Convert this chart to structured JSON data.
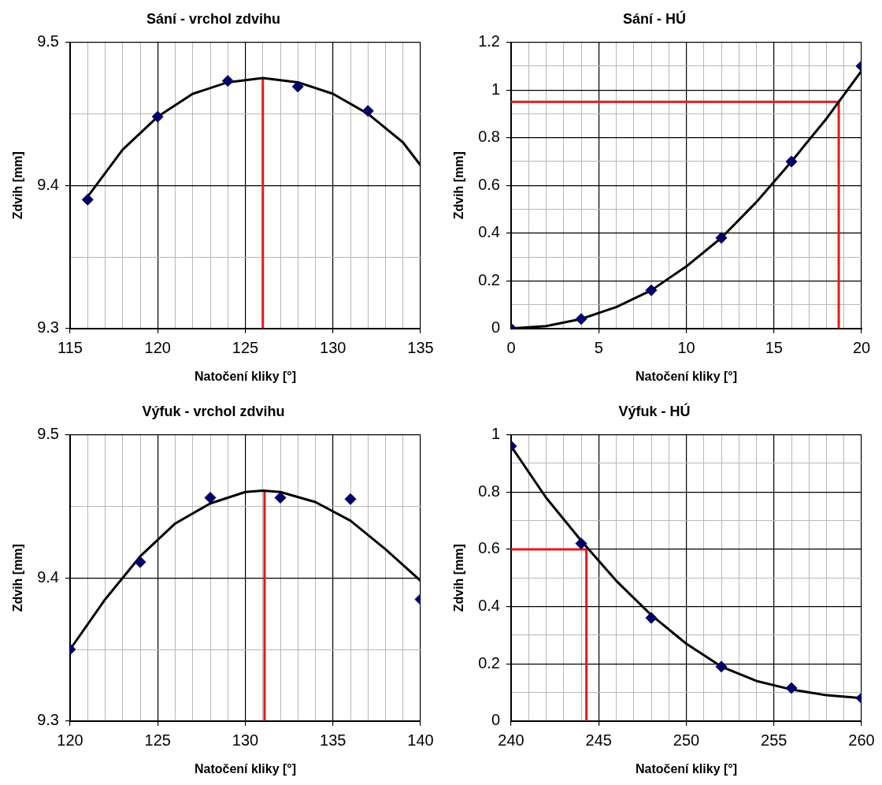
{
  "chart_data": [
    {
      "type": "scatter",
      "title": "Sání - vrchol zdvihu",
      "xlabel": "Natočení kliky [°]",
      "ylabel": "Zdvih [mm]",
      "xlim": [
        115,
        135
      ],
      "ylim": [
        9.3,
        9.5
      ],
      "xticks": [
        115,
        {
          "value": 116,
          "label": null
        },
        {
          "value": 117,
          "label": null
        },
        {
          "value": 118,
          "label": null
        },
        {
          "value": 119,
          "label": null
        },
        120,
        {
          "value": 121,
          "label": null
        },
        {
          "value": 122,
          "label": null
        },
        {
          "value": 123,
          "label": null
        },
        {
          "value": 124,
          "label": null
        },
        125,
        {
          "value": 126,
          "label": null
        },
        {
          "value": 127,
          "label": null
        },
        {
          "value": 128,
          "label": null
        },
        {
          "value": 129,
          "label": null
        },
        130,
        {
          "value": 131,
          "label": null
        },
        {
          "value": 132,
          "label": null
        },
        {
          "value": 133,
          "label": null
        },
        {
          "value": 134,
          "label": null
        },
        135
      ],
      "yticks": [
        9.3,
        {
          "value": 9.35,
          "label": null
        },
        9.4,
        {
          "value": 9.45,
          "label": null
        },
        9.5
      ],
      "grid": true,
      "series": [
        {
          "type": "line",
          "marker": "none",
          "color": "#000000",
          "x": [
            116,
            118,
            120,
            122,
            124,
            126,
            128,
            130,
            132,
            134,
            135
          ],
          "values": [
            9.392,
            9.425,
            9.448,
            9.464,
            9.472,
            9.475,
            9.472,
            9.464,
            9.45,
            9.43,
            9.414
          ]
        },
        {
          "type": "line",
          "marker": "none",
          "color": "#e01b1b",
          "x": [
            126,
            126
          ],
          "values": [
            9.3,
            9.475
          ]
        },
        {
          "marker": "diamond",
          "color": "#000066",
          "x": [
            116,
            120,
            124,
            128,
            132
          ],
          "values": [
            9.39,
            9.448,
            9.473,
            9.469,
            9.452
          ]
        }
      ]
    },
    {
      "type": "scatter",
      "title": "Sání - HÚ",
      "xlabel": "Natočení kliky [°]",
      "ylabel": "Zdvih [mm]",
      "xlim": [
        0,
        20
      ],
      "ylim": [
        0,
        1.2
      ],
      "xticks": [
        0,
        {
          "value": 1,
          "label": null
        },
        {
          "value": 2,
          "label": null
        },
        {
          "value": 3,
          "label": null
        },
        {
          "value": 4,
          "label": null
        },
        5,
        {
          "value": 6,
          "label": null
        },
        {
          "value": 7,
          "label": null
        },
        {
          "value": 8,
          "label": null
        },
        {
          "value": 9,
          "label": null
        },
        10,
        {
          "value": 11,
          "label": null
        },
        {
          "value": 12,
          "label": null
        },
        {
          "value": 13,
          "label": null
        },
        {
          "value": 14,
          "label": null
        },
        15,
        {
          "value": 16,
          "label": null
        },
        {
          "value": 17,
          "label": null
        },
        {
          "value": 18,
          "label": null
        },
        {
          "value": 19,
          "label": null
        },
        20
      ],
      "yticks": [
        0,
        {
          "value": 0.1,
          "label": null
        },
        0.2,
        {
          "value": 0.3,
          "label": null
        },
        0.4,
        {
          "value": 0.5,
          "label": null
        },
        0.6,
        {
          "value": 0.7,
          "label": null
        },
        0.8,
        {
          "value": 0.9,
          "label": null
        },
        1,
        {
          "value": 1.1,
          "label": null
        },
        1.2
      ],
      "grid": true,
      "series": [
        {
          "type": "line",
          "marker": "none",
          "color": "#000000",
          "x": [
            0,
            2,
            4,
            6,
            8,
            10,
            12,
            14,
            16,
            18,
            20
          ],
          "values": [
            0,
            0.01,
            0.04,
            0.09,
            0.16,
            0.26,
            0.38,
            0.53,
            0.7,
            0.88,
            1.08
          ]
        },
        {
          "type": "line",
          "marker": "none",
          "color": "#e01b1b",
          "x": [
            0,
            18.7,
            18.7
          ],
          "values": [
            0.95,
            0.95,
            0
          ]
        },
        {
          "marker": "diamond",
          "color": "#000066",
          "x": [
            0,
            4,
            8,
            12,
            16,
            20
          ],
          "values": [
            0,
            0.04,
            0.16,
            0.38,
            0.7,
            1.1
          ]
        }
      ]
    },
    {
      "type": "scatter",
      "title": "Výfuk - vrchol zdvihu",
      "xlabel": "Natočení kliky [°]",
      "ylabel": "Zdvih [mm]",
      "xlim": [
        120,
        140
      ],
      "ylim": [
        9.3,
        9.5
      ],
      "xticks": [
        120,
        {
          "value": 121,
          "label": null
        },
        {
          "value": 122,
          "label": null
        },
        {
          "value": 123,
          "label": null
        },
        {
          "value": 124,
          "label": null
        },
        125,
        {
          "value": 126,
          "label": null
        },
        {
          "value": 127,
          "label": null
        },
        {
          "value": 128,
          "label": null
        },
        {
          "value": 129,
          "label": null
        },
        130,
        {
          "value": 131,
          "label": null
        },
        {
          "value": 132,
          "label": null
        },
        {
          "value": 133,
          "label": null
        },
        {
          "value": 134,
          "label": null
        },
        135,
        {
          "value": 136,
          "label": null
        },
        {
          "value": 137,
          "label": null
        },
        {
          "value": 138,
          "label": null
        },
        {
          "value": 139,
          "label": null
        },
        140
      ],
      "yticks": [
        9.3,
        {
          "value": 9.35,
          "label": null
        },
        9.4,
        {
          "value": 9.45,
          "label": null
        },
        9.5
      ],
      "grid": true,
      "series": [
        {
          "type": "line",
          "marker": "none",
          "color": "#000000",
          "x": [
            120,
            122,
            124,
            126,
            128,
            130,
            131,
            132,
            134,
            136,
            138,
            140
          ],
          "values": [
            9.35,
            9.385,
            9.415,
            9.438,
            9.452,
            9.46,
            9.461,
            9.46,
            9.453,
            9.44,
            9.42,
            9.398
          ]
        },
        {
          "type": "line",
          "marker": "none",
          "color": "#e01b1b",
          "x": [
            131.1,
            131.1
          ],
          "values": [
            9.3,
            9.461
          ]
        },
        {
          "marker": "diamond",
          "color": "#000066",
          "x": [
            120,
            124,
            128,
            132,
            136,
            140
          ],
          "values": [
            9.35,
            9.411,
            9.456,
            9.456,
            9.455,
            9.385
          ]
        }
      ]
    },
    {
      "type": "scatter",
      "title": "Výfuk - HÚ",
      "xlabel": "Natočení kliky [°]",
      "ylabel": "Zdvih [mm]",
      "xlim": [
        240,
        260
      ],
      "ylim": [
        0,
        1
      ],
      "xticks": [
        240,
        {
          "value": 241,
          "label": null
        },
        {
          "value": 242,
          "label": null
        },
        {
          "value": 243,
          "label": null
        },
        {
          "value": 244,
          "label": null
        },
        245,
        {
          "value": 246,
          "label": null
        },
        {
          "value": 247,
          "label": null
        },
        {
          "value": 248,
          "label": null
        },
        {
          "value": 249,
          "label": null
        },
        250,
        {
          "value": 251,
          "label": null
        },
        {
          "value": 252,
          "label": null
        },
        {
          "value": 253,
          "label": null
        },
        {
          "value": 254,
          "label": null
        },
        255,
        {
          "value": 256,
          "label": null
        },
        {
          "value": 257,
          "label": null
        },
        {
          "value": 258,
          "label": null
        },
        {
          "value": 259,
          "label": null
        },
        260
      ],
      "yticks": [
        0,
        {
          "value": 0.1,
          "label": null
        },
        0.2,
        {
          "value": 0.3,
          "label": null
        },
        0.4,
        {
          "value": 0.5,
          "label": null
        },
        0.6,
        {
          "value": 0.7,
          "label": null
        },
        0.8,
        {
          "value": 0.9,
          "label": null
        },
        1
      ],
      "grid": true,
      "series": [
        {
          "type": "line",
          "marker": "none",
          "color": "#000000",
          "x": [
            240,
            242,
            244,
            246,
            248,
            250,
            252,
            254,
            256,
            258,
            260
          ],
          "values": [
            0.96,
            0.78,
            0.63,
            0.49,
            0.37,
            0.27,
            0.19,
            0.14,
            0.11,
            0.09,
            0.08
          ]
        },
        {
          "type": "line",
          "marker": "none",
          "color": "#e01b1b",
          "x": [
            240,
            244.3,
            244.3
          ],
          "values": [
            0.6,
            0.6,
            0
          ]
        },
        {
          "marker": "diamond",
          "color": "#000066",
          "x": [
            240,
            244,
            248,
            252,
            256,
            260
          ],
          "values": [
            0.96,
            0.62,
            0.36,
            0.19,
            0.115,
            0.08
          ]
        }
      ]
    }
  ]
}
